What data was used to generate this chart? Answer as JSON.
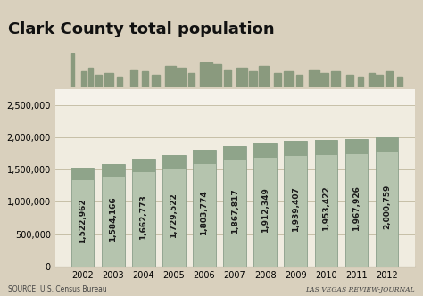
{
  "title": "Clark County total population",
  "years": [
    2002,
    2003,
    2004,
    2005,
    2006,
    2007,
    2008,
    2009,
    2010,
    2011,
    2012
  ],
  "values": [
    1522962,
    1584166,
    1662773,
    1729522,
    1803774,
    1867817,
    1912349,
    1939407,
    1953422,
    1967926,
    2000759
  ],
  "bar_color": "#b5c4ae",
  "bar_edge_color": "#8a9e8a",
  "background_color": "#d9d0bd",
  "plot_bg_color": "#f0ece0",
  "skyline_bg_color": "#e8e3d5",
  "white_band_color": "#f5f2ea",
  "grid_color": "#c0b89e",
  "ylim": [
    0,
    2750000
  ],
  "yticks": [
    0,
    500000,
    1000000,
    1500000,
    2000000,
    2500000
  ],
  "source_text": "SOURCE: U.S. Census Bureau",
  "credit_text": "LAS VEGAS REVIEW-JOURNAL",
  "title_fontsize": 13,
  "label_fontsize": 6.5,
  "tick_fontsize": 7,
  "bar_width": 0.75
}
